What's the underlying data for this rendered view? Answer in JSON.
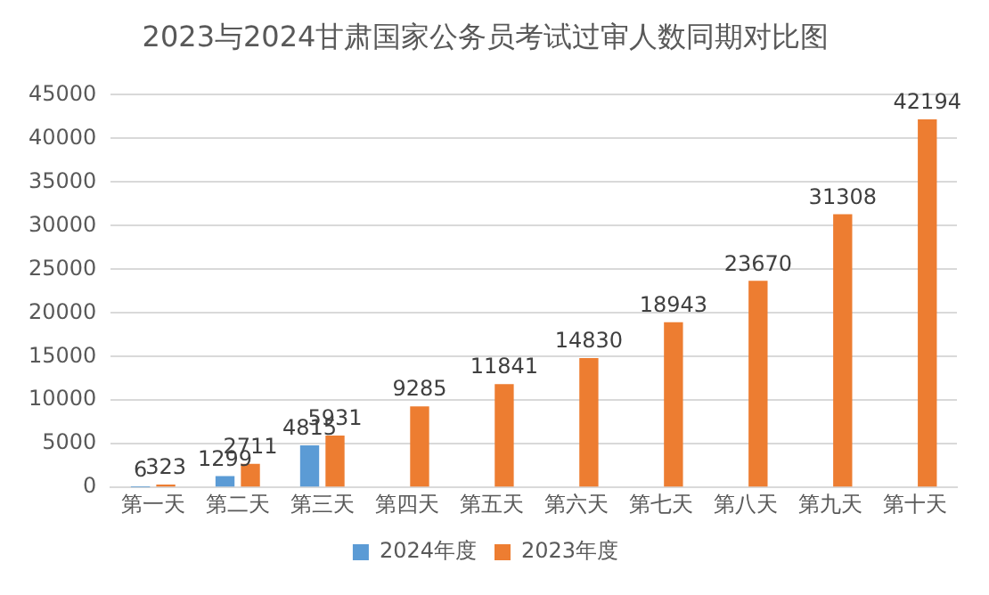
{
  "chart_data": {
    "type": "bar",
    "title": "2023与2024甘肃国家公务员考试过审人数同期对比图",
    "categories": [
      "第一天",
      "第二天",
      "第三天",
      "第四天",
      "第五天",
      "第六天",
      "第七天",
      "第八天",
      "第九天",
      "第十天"
    ],
    "series": [
      {
        "name": "2024年度",
        "color": "#5b9bd5",
        "values": [
          6,
          1299,
          4815,
          null,
          null,
          null,
          null,
          null,
          null,
          null
        ]
      },
      {
        "name": "2023年度",
        "color": "#ed7d31",
        "values": [
          323,
          2711,
          5931,
          9285,
          11841,
          14830,
          18943,
          23670,
          31308,
          42194
        ]
      }
    ],
    "ylim": [
      0,
      45000
    ],
    "yticks": [
      0,
      5000,
      10000,
      15000,
      20000,
      25000,
      30000,
      35000,
      40000,
      45000
    ],
    "grid": "y",
    "legend": "bottom",
    "data_labels": true
  }
}
